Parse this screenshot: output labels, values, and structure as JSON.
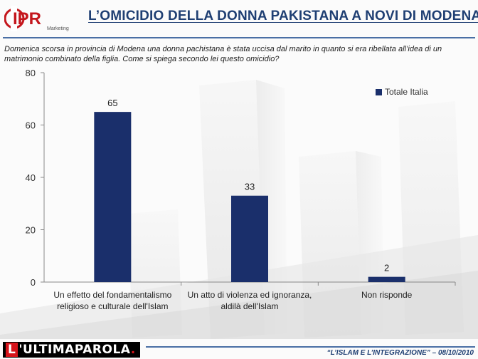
{
  "header": {
    "logo_text": "IPR",
    "logo_subtext": "Marketing",
    "title": "L’OMICIDIO DELLA DONNA PAKISTANA A NOVI DI MODENA"
  },
  "question": "Domenica scorsa in provincia di Modena una donna pachistana è stata uccisa dal marito in quanto si era ribellata all’idea di un matrimonio combinato della figlia. Come si spiega secondo lei questo omicidio?",
  "chart_data": {
    "type": "bar",
    "categories": [
      [
        "Un effetto del fondamentalismo",
        "religioso e culturale dell'Islam"
      ],
      [
        "Un atto di violenza ed ignoranza,",
        "aldilà dell'Islam"
      ],
      [
        "Non risponde"
      ]
    ],
    "series": [
      {
        "name": "Totale Italia",
        "values": [
          65,
          33,
          2
        ],
        "color": "#1a2f6b"
      }
    ],
    "ylim": [
      0,
      80
    ],
    "yticks": [
      0,
      20,
      40,
      60,
      80
    ],
    "data_labels": true,
    "legend_position": "top-right",
    "grid": false
  },
  "footer": {
    "brand_first": "L",
    "brand_rest": "'ULTIMAPAROLA",
    "brand_dot": ".",
    "caption": "“L’ISLAM E L’INTEGRAZIONE” – 08/10/2010"
  }
}
